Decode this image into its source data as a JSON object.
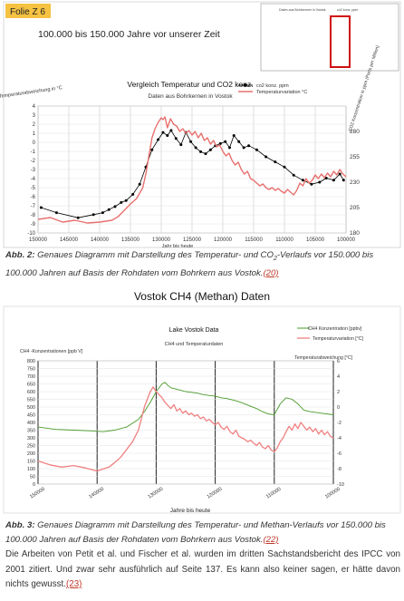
{
  "figure1": {
    "badge": "Folie Z 6",
    "headline": "100.000 bis 150.000 Jahre vor unserer Zeit",
    "inset": {
      "legend": [
        "Daten aus Bohrkernen in Vostok",
        "co2 konz. ppm"
      ]
    },
    "chart_data": {
      "type": "line",
      "title": "Vergleich Temperatur und CO2 konz.",
      "subtitle": "Daten aus Bohrkernen in Vostok",
      "xlabel": "Jahr bis heute",
      "ylabel": "Temperaturabweichung in °C",
      "y2label": "CO2 Konzentration in ppm (Parts per Million)",
      "xlim": [
        150000,
        100000
      ],
      "ylim": [
        -10,
        4
      ],
      "y2lim": [
        180,
        305
      ],
      "x_ticks": [
        "150000",
        "145000",
        "140000",
        "135000",
        "130000",
        "125000",
        "120000",
        "115000",
        "110000",
        "105000",
        "100000"
      ],
      "y_ticks": [
        "4",
        "3",
        "2",
        "1",
        "0",
        "-1",
        "-2",
        "-3",
        "-4",
        "-5",
        "-6",
        "-7",
        "-8",
        "-9",
        "-10"
      ],
      "y2_ticks": [
        "280",
        "255",
        "230",
        "205",
        "180"
      ],
      "series": [
        {
          "name": "co2 konz. ppm",
          "color": "#000000",
          "axis": "right",
          "x": [
            149500,
            147000,
            143500,
            141000,
            139500,
            138500,
            137500,
            136500,
            135700,
            134600,
            133500,
            132500,
            131500,
            130500,
            129700,
            129000,
            128400,
            127600,
            126800,
            126000,
            125200,
            124400,
            123600,
            122800,
            122000,
            121200,
            120400,
            119600,
            118900,
            118200,
            117400,
            116600,
            115800,
            114500,
            113000,
            111500,
            110000,
            108500,
            107000,
            105600,
            104300,
            103200,
            102000,
            101000,
            100400
          ],
          "values": [
            205,
            200,
            195,
            198,
            200,
            203,
            206,
            210,
            212,
            218,
            228,
            245,
            262,
            272,
            279,
            276,
            281,
            273,
            267,
            279,
            270,
            264,
            260,
            258,
            262,
            266,
            268,
            270,
            264,
            276,
            270,
            264,
            266,
            262,
            255,
            250,
            245,
            237,
            232,
            228,
            230,
            234,
            232,
            238,
            232
          ]
        },
        {
          "name": "Temperaturvariation °C",
          "color": "#e8706e",
          "axis": "left",
          "x": [
            150000,
            148000,
            146000,
            144000,
            142000,
            140000,
            138000,
            137000,
            136000,
            135000,
            134000,
            133000,
            132500,
            132000,
            131500,
            131000,
            130500,
            130000,
            129700,
            129400,
            129000,
            128500,
            128000,
            127500,
            127000,
            126500,
            126000,
            125500,
            125000,
            124500,
            124000,
            123500,
            123000,
            122500,
            122000,
            121500,
            121000,
            120500,
            120000,
            119500,
            119000,
            118500,
            118000,
            117500,
            117000,
            116500,
            116000,
            115500,
            115000,
            114500,
            114000,
            113500,
            113000,
            112500,
            112000,
            111500,
            111000,
            110500,
            110000,
            109500,
            109000,
            108500,
            108000,
            107500,
            107000,
            106500,
            106000,
            105500,
            105000,
            104500,
            104000,
            103500,
            103000,
            102500,
            102000,
            101500,
            101000,
            100500,
            100000
          ],
          "values": [
            -8.5,
            -8.3,
            -8.8,
            -8.6,
            -8.9,
            -8.8,
            -8.6,
            -8.2,
            -7.5,
            -6.8,
            -6.2,
            -5.0,
            -3.5,
            -1.5,
            0.5,
            1.5,
            2.2,
            2.7,
            2.5,
            2.8,
            1.6,
            2.6,
            2.0,
            1.8,
            1.2,
            1.5,
            1.0,
            1.3,
            0.8,
            1.2,
            0.5,
            1.0,
            0.2,
            0.5,
            -0.2,
            0.2,
            -0.5,
            -0.3,
            -1.0,
            -1.5,
            -1.2,
            -2.0,
            -2.5,
            -2.2,
            -3.0,
            -3.5,
            -3.2,
            -4.0,
            -4.2,
            -4.5,
            -4.8,
            -4.6,
            -5.0,
            -5.2,
            -5.0,
            -5.3,
            -5.1,
            -5.4,
            -5.6,
            -5.2,
            -5.5,
            -5.8,
            -5.3,
            -4.5,
            -4.8,
            -4.0,
            -4.5,
            -4.2,
            -3.6,
            -4.0,
            -3.5,
            -3.9,
            -3.4,
            -3.8,
            -3.2,
            -3.6,
            -3.0,
            -3.5,
            -3.8
          ]
        }
      ]
    },
    "caption": {
      "label": "Abb. 2:",
      "text_before": " Genaues Diagramm mit Darstellung des Temperatur- und CO",
      "sub": "2",
      "text_after": "-Verlaufs vor 150.000 bis 100.000 Jahren auf Basis der Rohdaten vom Bohrkern aus Vostok.",
      "ref": "(20)"
    }
  },
  "section_title": "Vostok CH4 (Methan) Daten",
  "figure2": {
    "chart_data": {
      "type": "line",
      "title": "Lake Vostok Data",
      "subtitle": "CH4 und Temperaturdaten",
      "xlabel": "Jahre bis heute",
      "ylabel": "CH4 -Konzentrationen [ppb V]",
      "y2label": "Temperaturabweichung [°C]",
      "xlim": [
        150000,
        100000
      ],
      "ylim": [
        0,
        800
      ],
      "y2lim": [
        -10,
        6
      ],
      "x_ticks": [
        "150000",
        "140000",
        "130000",
        "120000",
        "110000",
        "100000"
      ],
      "y_ticks": [
        "800",
        "750",
        "700",
        "650",
        "600",
        "550",
        "500",
        "450",
        "400",
        "350",
        "300",
        "250",
        "200",
        "150",
        "100",
        "50",
        "0"
      ],
      "y2_ticks": [
        "6",
        "4",
        "2",
        "0",
        "-2",
        "-4",
        "-6",
        "-8",
        "-10"
      ],
      "series": [
        {
          "name": "CH4 Konzentration [ppbv]",
          "color": "#4a9a2a",
          "axis": "left",
          "x": [
            150000,
            147000,
            144000,
            141000,
            139000,
            137000,
            135000,
            133000,
            132000,
            131000,
            130000,
            129000,
            128500,
            128000,
            127500,
            127000,
            126000,
            125000,
            124000,
            123000,
            122000,
            121000,
            120000,
            119000,
            118000,
            117000,
            116000,
            115000,
            114000,
            113000,
            112000,
            111000,
            110000,
            109000,
            108000,
            107000,
            106000,
            105000,
            104000,
            103000,
            102000,
            101000,
            100000
          ],
          "values": [
            370,
            355,
            350,
            345,
            340,
            350,
            370,
            420,
            470,
            530,
            600,
            650,
            660,
            640,
            625,
            620,
            610,
            600,
            595,
            590,
            580,
            575,
            570,
            560,
            555,
            545,
            535,
            520,
            505,
            490,
            470,
            455,
            450,
            520,
            560,
            550,
            520,
            480,
            470,
            465,
            460,
            455,
            450
          ]
        },
        {
          "name": "Temperaturvariation [°C]",
          "color": "#f08080",
          "axis": "right",
          "x": [
            150000,
            148000,
            146000,
            144000,
            142000,
            140000,
            138000,
            137000,
            136000,
            135000,
            134000,
            133000,
            132500,
            132000,
            131500,
            131000,
            130500,
            130000,
            129500,
            129000,
            128500,
            128000,
            127500,
            127000,
            126500,
            126000,
            125500,
            125000,
            124500,
            124000,
            123500,
            123000,
            122500,
            122000,
            121500,
            121000,
            120500,
            120000,
            119500,
            119000,
            118500,
            118000,
            117500,
            117000,
            116500,
            116000,
            115500,
            115000,
            114500,
            114000,
            113500,
            113000,
            112500,
            112000,
            111500,
            111000,
            110500,
            110000,
            109500,
            109000,
            108500,
            108000,
            107500,
            107000,
            106500,
            106000,
            105500,
            105000,
            104500,
            104000,
            103500,
            103000,
            102500,
            102000,
            101500,
            101000,
            100500,
            100000
          ],
          "values": [
            -7.0,
            -7.5,
            -7.8,
            -7.6,
            -7.9,
            -8.3,
            -7.8,
            -7.2,
            -6.5,
            -5.5,
            -4.5,
            -3.0,
            -1.5,
            0.0,
            1.0,
            2.0,
            2.6,
            2.0,
            1.6,
            1.2,
            0.6,
            0.2,
            -0.2,
            0.3,
            -0.5,
            -0.2,
            -0.8,
            -0.5,
            -1.0,
            -0.8,
            -1.2,
            -1.0,
            -1.5,
            -1.3,
            -1.8,
            -1.6,
            -2.0,
            -2.3,
            -2.0,
            -2.6,
            -2.9,
            -2.5,
            -3.2,
            -3.5,
            -3.0,
            -3.8,
            -4.0,
            -4.2,
            -4.5,
            -4.3,
            -4.7,
            -5.0,
            -4.6,
            -5.2,
            -5.4,
            -5.0,
            -5.6,
            -5.8,
            -5.3,
            -4.5,
            -4.0,
            -3.2,
            -2.5,
            -3.0,
            -2.2,
            -2.8,
            -2.0,
            -2.5,
            -3.0,
            -2.6,
            -3.2,
            -2.8,
            -3.5,
            -3.0,
            -3.6,
            -3.2,
            -3.8,
            -4.0
          ]
        }
      ]
    },
    "caption": {
      "label": "Abb. 3:",
      "text": " Genaues Diagramm mit Darstellung des Temperatur- und Methan-Verlaufs vor 150.000 bis 100.000 Jahren auf Basis der Rohdaten vom Bohrkern aus Vostok.",
      "ref": "(22)"
    }
  },
  "paragraph": {
    "text": "Die Arbeiten von Petit et al. und Fischer et al. wurden im dritten Sachstandsbericht des IPCC von 2001 zitiert. Und zwar sehr ausführlich auf Seite 137. Es kann also keiner sagen, er hätte davon nichts gewusst.",
    "ref": "(23)"
  }
}
